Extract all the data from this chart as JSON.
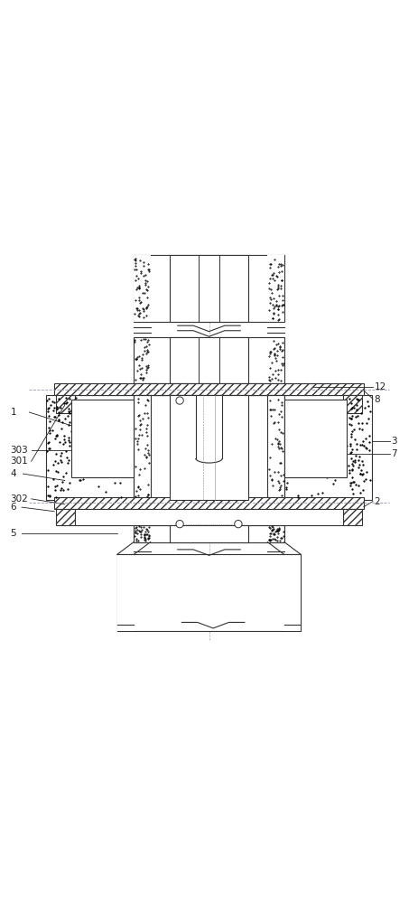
{
  "fig_width": 4.63,
  "fig_height": 10.0,
  "bg_color": "#ffffff",
  "line_color": "#333333",
  "label_color": "#222222"
}
